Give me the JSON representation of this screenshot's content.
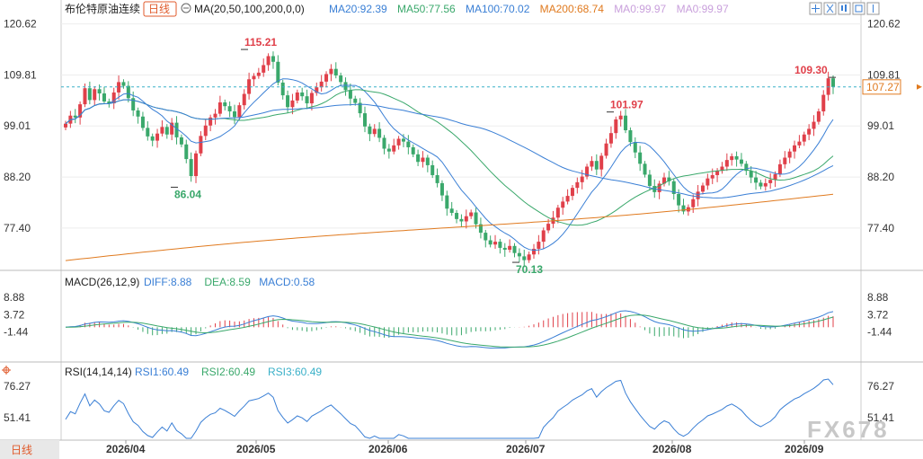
{
  "header": {
    "title": "布伦特原油连续",
    "period": "日线",
    "ma_label": "MA(20,50,100,200,0,0)",
    "ma_values": [
      {
        "label": "MA20:92.39",
        "color": "#3a7fd5"
      },
      {
        "label": "MA50:77.56",
        "color": "#3aa86b"
      },
      {
        "label": "MA100:70.02",
        "color": "#3a7fd5"
      },
      {
        "label": "MA200:68.74",
        "color": "#e07a1f"
      },
      {
        "label": "MA0:99.97",
        "color": "#c9a0dc"
      },
      {
        "label": "MA0:99.97",
        "color": "#c9a0dc"
      }
    ]
  },
  "toolbar_icons": [
    "crosshair-icon",
    "grid-icon",
    "candles-icon",
    "table-icon",
    "pin-icon"
  ],
  "price_axis": {
    "ticks": [
      "120.62",
      "109.81",
      "99.01",
      "88.20",
      "77.40"
    ],
    "current": "107.27"
  },
  "macd": {
    "label": "MACD(26,12,9)",
    "values": [
      {
        "label": "DIFF:8.88",
        "color": "#3a7fd5"
      },
      {
        "label": "DEA:8.59",
        "color": "#3aa86b"
      },
      {
        "label": "MACD:0.58",
        "color": "#3a7fd5"
      }
    ],
    "ticks": [
      "8.88",
      "3.72",
      "-1.44"
    ]
  },
  "rsi": {
    "label": "RSI(14,14,14)",
    "values": [
      {
        "label": "RSI1:60.49",
        "color": "#3a7fd5"
      },
      {
        "label": "RSI2:60.49",
        "color": "#3aa86b"
      },
      {
        "label": "RSI3:60.49",
        "color": "#3ab0c8"
      }
    ],
    "ticks": [
      "76.27",
      "51.41"
    ]
  },
  "x_axis": {
    "labels": [
      "2026/04",
      "2026/05",
      "2026/06",
      "2026/07",
      "2026/08",
      "2026/09"
    ]
  },
  "footer": {
    "period_tab": "日线"
  },
  "watermark": "FX678",
  "chart_data": {
    "type": "candlestick",
    "y_range": [
      70.13,
      120.62
    ],
    "annotations": [
      {
        "label": "115.21",
        "value": 115.21,
        "kind": "high"
      },
      {
        "label": "86.04",
        "value": 86.04,
        "kind": "low"
      },
      {
        "label": "101.97",
        "value": 101.97,
        "kind": "high"
      },
      {
        "label": "70.13",
        "value": 70.13,
        "kind": "low"
      },
      {
        "label": "109.30",
        "value": 109.3,
        "kind": "high"
      }
    ],
    "last_close": 107.27,
    "closes": [
      99.5,
      101.2,
      100.8,
      103.6,
      107.0,
      104.5,
      106.8,
      105.9,
      104.2,
      103.8,
      106.1,
      108.3,
      107.5,
      104.9,
      102.3,
      101.0,
      98.6,
      96.8,
      95.9,
      97.4,
      98.8,
      97.2,
      99.7,
      96.6,
      95.1,
      92.0,
      88.4,
      93.2,
      96.9,
      99.1,
      100.8,
      101.6,
      104.0,
      103.2,
      102.1,
      100.9,
      103.4,
      105.8,
      108.9,
      109.6,
      110.3,
      111.9,
      113.8,
      112.6,
      108.2,
      105.5,
      103.0,
      104.4,
      106.1,
      105.3,
      103.8,
      106.0,
      107.2,
      108.4,
      110.0,
      111.1,
      109.7,
      108.3,
      106.6,
      104.8,
      103.9,
      101.7,
      98.9,
      97.3,
      98.4,
      96.5,
      94.2,
      93.6,
      94.9,
      96.3,
      95.7,
      94.5,
      93.0,
      91.4,
      92.3,
      90.7,
      88.6,
      86.9,
      84.3,
      81.5,
      80.6,
      79.3,
      78.8,
      79.9,
      80.7,
      78.2,
      76.4,
      74.8,
      73.9,
      74.5,
      73.2,
      72.8,
      73.6,
      72.1,
      71.4,
      70.6,
      71.8,
      73.0,
      74.5,
      76.9,
      78.3,
      79.6,
      81.7,
      83.0,
      84.2,
      85.9,
      87.1,
      88.3,
      90.4,
      91.6,
      89.8,
      92.7,
      95.3,
      97.5,
      100.4,
      101.2,
      98.1,
      95.6,
      93.4,
      91.0,
      88.7,
      86.3,
      85.0,
      86.8,
      88.1,
      87.3,
      84.6,
      82.2,
      80.9,
      81.8,
      83.5,
      85.1,
      86.4,
      87.9,
      88.6,
      89.5,
      90.4,
      91.8,
      92.6,
      91.9,
      91.0,
      89.5,
      88.1,
      87.0,
      86.2,
      86.9,
      87.6,
      88.8,
      90.9,
      92.3,
      93.6,
      94.9,
      95.7,
      97.2,
      98.4,
      99.9,
      102.1,
      105.6,
      109.1,
      107.27
    ],
    "macd": {
      "diff_last": 8.88,
      "dea_last": 8.59,
      "macd_last": 0.58
    },
    "rsi_last": 60.49,
    "grid": true,
    "legend": "top-left"
  }
}
